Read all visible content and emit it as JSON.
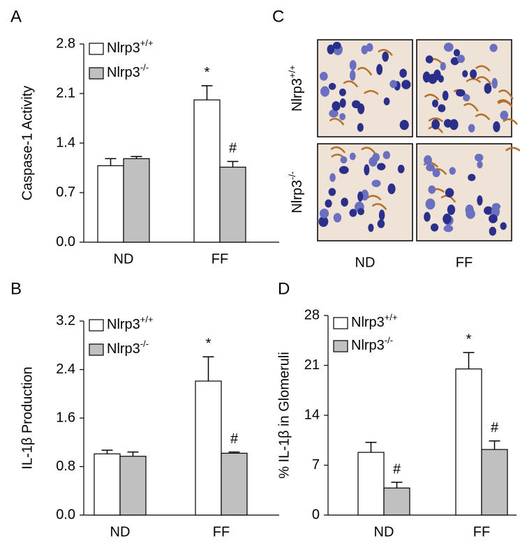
{
  "chart_data": [
    {
      "type": "bar",
      "panel_label": "A",
      "y_label": "Caspase-1 Activity",
      "categories": [
        "ND",
        "FF"
      ],
      "series": [
        {
          "name": "Nlrp3",
          "name_superscript": "+/+",
          "color": "#ffffff",
          "values": [
            1.08,
            2.01
          ],
          "errors": [
            0.1,
            0.2
          ],
          "value_annotations": [
            null,
            "*"
          ]
        },
        {
          "name": "Nlrp3",
          "name_superscript": "-/-",
          "color": "#c0c0c0",
          "values": [
            1.18,
            1.06
          ],
          "errors": [
            0.03,
            0.08
          ],
          "value_annotations": [
            null,
            "#"
          ]
        }
      ],
      "ylim": [
        0,
        2.8
      ],
      "yticks": [
        {
          "value": 0,
          "label": "0.0"
        },
        0.7,
        1.4,
        2.1,
        2.8
      ],
      "grid": false
    },
    {
      "type": "bar",
      "panel_label": "B",
      "y_label": "IL-1β Production",
      "categories": [
        "ND",
        "FF"
      ],
      "series": [
        {
          "name": "Nlrp3",
          "name_superscript": "+/+",
          "color": "#ffffff",
          "values": [
            1.01,
            2.21
          ],
          "errors": [
            0.06,
            0.4
          ],
          "value_annotations": [
            null,
            "*"
          ]
        },
        {
          "name": "Nlrp3",
          "name_superscript": "-/-",
          "color": "#c0c0c0",
          "values": [
            0.97,
            1.02
          ],
          "errors": [
            0.07,
            0.02
          ],
          "value_annotations": [
            null,
            "#"
          ]
        }
      ],
      "ylim": [
        0,
        3.2
      ],
      "yticks": [
        {
          "value": 0,
          "label": "0.0"
        },
        0.8,
        1.6,
        2.4,
        3.2
      ],
      "grid": false
    },
    {
      "type": "bar",
      "panel_label": "D",
      "y_label": "% IL-1β in Glomeruli",
      "categories": [
        "ND",
        "FF"
      ],
      "series": [
        {
          "name": "Nlrp3",
          "name_superscript": "+/+",
          "color": "#ffffff",
          "values": [
            8.8,
            20.5
          ],
          "errors": [
            1.4,
            2.3
          ],
          "value_annotations": [
            null,
            "*"
          ]
        },
        {
          "name": "Nlrp3",
          "name_superscript": "-/-",
          "color": "#c0c0c0",
          "values": [
            3.8,
            9.2
          ],
          "errors": [
            0.8,
            1.2
          ],
          "value_annotations": [
            "#",
            "#"
          ]
        }
      ],
      "ylim": [
        0,
        28
      ],
      "yticks": [
        0,
        7,
        14,
        21,
        28
      ],
      "grid": false
    }
  ],
  "image_panel": {
    "panel_label": "C",
    "rows": [
      {
        "name": "Nlrp3",
        "name_superscript": "+/+"
      },
      {
        "name": "Nlrp3",
        "name_superscript": "-/-"
      }
    ],
    "columns": [
      "ND",
      "FF"
    ]
  }
}
